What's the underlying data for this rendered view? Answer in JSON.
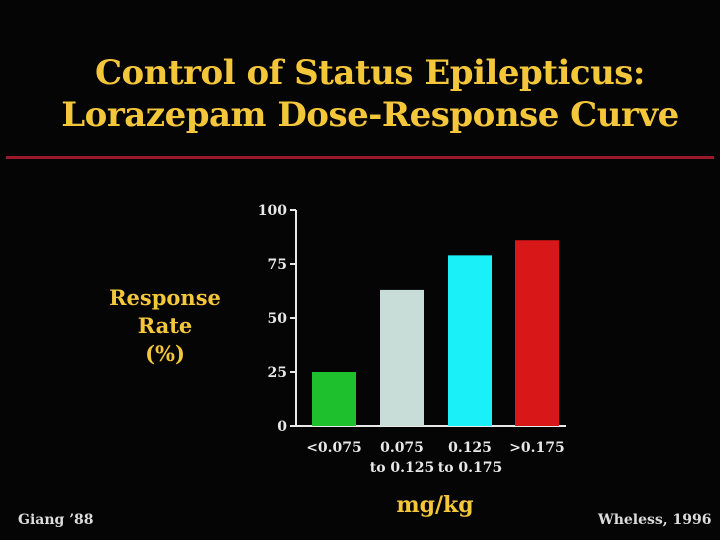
{
  "slide": {
    "title_line1": "Control of Status Epilepticus:",
    "title_line2": "Lorazepam Dose-Response Curve",
    "footer_left": "Giang ’88",
    "footer_right": "Wheless, 1996"
  },
  "chart_data": {
    "type": "bar",
    "ylabel_line1": "Response Rate",
    "ylabel_line2": "(%)",
    "xlabel": "mg/kg",
    "ylim": [
      0,
      100
    ],
    "yticks": [
      "0",
      "25",
      "50",
      "75",
      "100"
    ],
    "categories": [
      [
        "<0.075"
      ],
      [
        "0.075",
        "to 0.125"
      ],
      [
        "0.125",
        "to 0.175"
      ],
      [
        ">0.175"
      ]
    ],
    "values": [
      25,
      63,
      79,
      86
    ],
    "colors": [
      "#1fc02e",
      "#c8dcd8",
      "#19f0f8",
      "#d81818"
    ],
    "grid": false,
    "legend": "none"
  }
}
